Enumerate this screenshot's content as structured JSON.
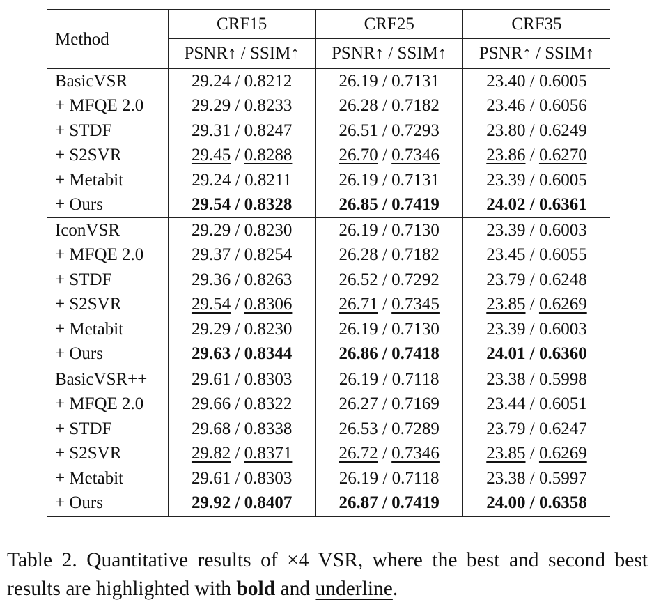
{
  "table": {
    "method_header": "Method",
    "crf_headers": [
      "CRF15",
      "CRF25",
      "CRF35"
    ],
    "metric_header": "PSNR↑ / SSIM↑",
    "separator": " / ",
    "groups": [
      {
        "rows": [
          {
            "method": "BasicVSR",
            "cells": [
              {
                "psnr": "29.24",
                "ssim": "0.8212",
                "psnr_style": "",
                "ssim_style": ""
              },
              {
                "psnr": "26.19",
                "ssim": "0.7131",
                "psnr_style": "",
                "ssim_style": ""
              },
              {
                "psnr": "23.40",
                "ssim": "0.6005",
                "psnr_style": "",
                "ssim_style": ""
              }
            ]
          },
          {
            "method": "+ MFQE 2.0",
            "cells": [
              {
                "psnr": "29.29",
                "ssim": "0.8233",
                "psnr_style": "",
                "ssim_style": ""
              },
              {
                "psnr": "26.28",
                "ssim": "0.7182",
                "psnr_style": "",
                "ssim_style": ""
              },
              {
                "psnr": "23.46",
                "ssim": "0.6056",
                "psnr_style": "",
                "ssim_style": ""
              }
            ]
          },
          {
            "method": "+ STDF",
            "cells": [
              {
                "psnr": "29.31",
                "ssim": "0.8247",
                "psnr_style": "",
                "ssim_style": ""
              },
              {
                "psnr": "26.51",
                "ssim": "0.7293",
                "psnr_style": "",
                "ssim_style": ""
              },
              {
                "psnr": "23.80",
                "ssim": "0.6249",
                "psnr_style": "",
                "ssim_style": ""
              }
            ]
          },
          {
            "method": "+ S2SVR",
            "cells": [
              {
                "psnr": "29.45",
                "ssim": "0.8288",
                "psnr_style": "underline",
                "ssim_style": "underline"
              },
              {
                "psnr": "26.70",
                "ssim": "0.7346",
                "psnr_style": "underline",
                "ssim_style": "underline"
              },
              {
                "psnr": "23.86",
                "ssim": "0.6270",
                "psnr_style": "underline",
                "ssim_style": "underline"
              }
            ]
          },
          {
            "method": "+ Metabit",
            "cells": [
              {
                "psnr": "29.24",
                "ssim": "0.8211",
                "psnr_style": "",
                "ssim_style": ""
              },
              {
                "psnr": "26.19",
                "ssim": "0.7131",
                "psnr_style": "",
                "ssim_style": ""
              },
              {
                "psnr": "23.39",
                "ssim": "0.6005",
                "psnr_style": "",
                "ssim_style": ""
              }
            ]
          },
          {
            "method": "+ Ours",
            "cells": [
              {
                "psnr": "29.54",
                "ssim": "0.8328",
                "psnr_style": "bold",
                "ssim_style": "bold"
              },
              {
                "psnr": "26.85",
                "ssim": "0.7419",
                "psnr_style": "bold",
                "ssim_style": "bold"
              },
              {
                "psnr": "24.02",
                "ssim": "0.6361",
                "psnr_style": "bold",
                "ssim_style": "bold"
              }
            ]
          }
        ]
      },
      {
        "rows": [
          {
            "method": "IconVSR",
            "cells": [
              {
                "psnr": "29.29",
                "ssim": "0.8230",
                "psnr_style": "",
                "ssim_style": ""
              },
              {
                "psnr": "26.19",
                "ssim": "0.7130",
                "psnr_style": "",
                "ssim_style": ""
              },
              {
                "psnr": "23.39",
                "ssim": "0.6003",
                "psnr_style": "",
                "ssim_style": ""
              }
            ]
          },
          {
            "method": "+ MFQE 2.0",
            "cells": [
              {
                "psnr": "29.37",
                "ssim": "0.8254",
                "psnr_style": "",
                "ssim_style": ""
              },
              {
                "psnr": "26.28",
                "ssim": "0.7182",
                "psnr_style": "",
                "ssim_style": ""
              },
              {
                "psnr": "23.45",
                "ssim": "0.6055",
                "psnr_style": "",
                "ssim_style": ""
              }
            ]
          },
          {
            "method": "+ STDF",
            "cells": [
              {
                "psnr": "29.36",
                "ssim": "0.8263",
                "psnr_style": "",
                "ssim_style": ""
              },
              {
                "psnr": "26.52",
                "ssim": "0.7292",
                "psnr_style": "",
                "ssim_style": ""
              },
              {
                "psnr": "23.79",
                "ssim": "0.6248",
                "psnr_style": "",
                "ssim_style": ""
              }
            ]
          },
          {
            "method": "+ S2SVR",
            "cells": [
              {
                "psnr": "29.54",
                "ssim": "0.8306",
                "psnr_style": "underline",
                "ssim_style": "underline"
              },
              {
                "psnr": "26.71",
                "ssim": "0.7345",
                "psnr_style": "underline",
                "ssim_style": "underline"
              },
              {
                "psnr": "23.85",
                "ssim": "0.6269",
                "psnr_style": "underline",
                "ssim_style": "underline"
              }
            ]
          },
          {
            "method": "+ Metabit",
            "cells": [
              {
                "psnr": "29.29",
                "ssim": "0.8230",
                "psnr_style": "",
                "ssim_style": ""
              },
              {
                "psnr": "26.19",
                "ssim": "0.7130",
                "psnr_style": "",
                "ssim_style": ""
              },
              {
                "psnr": "23.39",
                "ssim": "0.6003",
                "psnr_style": "",
                "ssim_style": ""
              }
            ]
          },
          {
            "method": "+ Ours",
            "cells": [
              {
                "psnr": "29.63",
                "ssim": "0.8344",
                "psnr_style": "bold",
                "ssim_style": "bold"
              },
              {
                "psnr": "26.86",
                "ssim": "0.7418",
                "psnr_style": "bold",
                "ssim_style": "bold"
              },
              {
                "psnr": "24.01",
                "ssim": "0.6360",
                "psnr_style": "bold",
                "ssim_style": "bold"
              }
            ]
          }
        ]
      },
      {
        "rows": [
          {
            "method": "BasicVSR++",
            "cells": [
              {
                "psnr": "29.61",
                "ssim": "0.8303",
                "psnr_style": "",
                "ssim_style": ""
              },
              {
                "psnr": "26.19",
                "ssim": "0.7118",
                "psnr_style": "",
                "ssim_style": ""
              },
              {
                "psnr": "23.38",
                "ssim": "0.5998",
                "psnr_style": "",
                "ssim_style": ""
              }
            ]
          },
          {
            "method": "+ MFQE 2.0",
            "cells": [
              {
                "psnr": "29.66",
                "ssim": "0.8322",
                "psnr_style": "",
                "ssim_style": ""
              },
              {
                "psnr": "26.27",
                "ssim": "0.7169",
                "psnr_style": "",
                "ssim_style": ""
              },
              {
                "psnr": "23.44",
                "ssim": "0.6051",
                "psnr_style": "",
                "ssim_style": ""
              }
            ]
          },
          {
            "method": "+ STDF",
            "cells": [
              {
                "psnr": "29.68",
                "ssim": "0.8338",
                "psnr_style": "",
                "ssim_style": ""
              },
              {
                "psnr": "26.53",
                "ssim": "0.7289",
                "psnr_style": "",
                "ssim_style": ""
              },
              {
                "psnr": "23.79",
                "ssim": "0.6247",
                "psnr_style": "",
                "ssim_style": ""
              }
            ]
          },
          {
            "method": "+ S2SVR",
            "cells": [
              {
                "psnr": "29.82",
                "ssim": "0.8371",
                "psnr_style": "underline",
                "ssim_style": "underline"
              },
              {
                "psnr": "26.72",
                "ssim": "0.7346",
                "psnr_style": "underline",
                "ssim_style": "underline"
              },
              {
                "psnr": "23.85",
                "ssim": "0.6269",
                "psnr_style": "underline",
                "ssim_style": "underline"
              }
            ]
          },
          {
            "method": "+ Metabit",
            "cells": [
              {
                "psnr": "29.61",
                "ssim": "0.8303",
                "psnr_style": "",
                "ssim_style": ""
              },
              {
                "psnr": "26.19",
                "ssim": "0.7118",
                "psnr_style": "",
                "ssim_style": ""
              },
              {
                "psnr": "23.38",
                "ssim": "0.5997",
                "psnr_style": "",
                "ssim_style": ""
              }
            ]
          },
          {
            "method": "+ Ours",
            "cells": [
              {
                "psnr": "29.92",
                "ssim": "0.8407",
                "psnr_style": "bold",
                "ssim_style": "bold"
              },
              {
                "psnr": "26.87",
                "ssim": "0.7419",
                "psnr_style": "bold",
                "ssim_style": "bold"
              },
              {
                "psnr": "24.00",
                "ssim": "0.6358",
                "psnr_style": "bold",
                "ssim_style": "bold"
              }
            ]
          }
        ]
      }
    ]
  },
  "caption": {
    "part1": "Table 2.  Quantitative results of ×4 VSR, where the best and second best results are highlighted with ",
    "bold_word": "bold",
    "part2": " and ",
    "underline_word": "underline",
    "part3": "."
  }
}
